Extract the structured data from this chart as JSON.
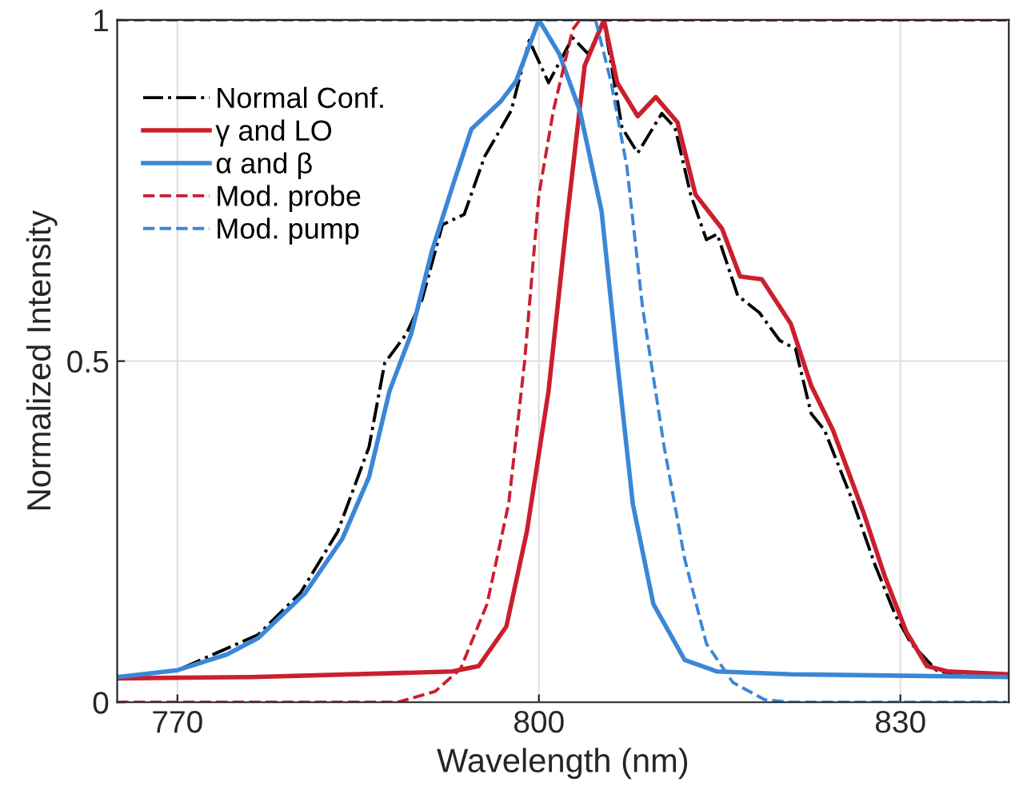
{
  "chart_data": {
    "type": "line",
    "xlabel": "Wavelength (nm)",
    "ylabel": "Normalized Intensity",
    "xlim": [
      765,
      839
    ],
    "ylim": [
      0,
      1.0
    ],
    "xticks": [
      770,
      800,
      830
    ],
    "yticks": [
      0,
      0.5,
      1
    ],
    "grid": true,
    "legend": "top left",
    "series": [
      {
        "name": "Normal Conf.",
        "color": "#000000",
        "line_style": "dashdot",
        "x": [
          765,
          770,
          776.7,
          780.2,
          783.3,
          785.9,
          787.2,
          789,
          790.3,
          792,
          793.8,
          795.5,
          797.7,
          799.2,
          800.8,
          802.8,
          804.1,
          805.4,
          806.9,
          808.2,
          810.2,
          811.3,
          812.6,
          813.9,
          814.8,
          816.5,
          818.3,
          820,
          821.3,
          822.6,
          823.7,
          826.1,
          827.9,
          829.6,
          830.9,
          833.1,
          838.8
        ],
        "values": [
          0.037,
          0.047,
          0.099,
          0.16,
          0.25,
          0.374,
          0.497,
          0.54,
          0.59,
          0.7,
          0.715,
          0.8,
          0.867,
          0.97,
          0.908,
          0.974,
          0.95,
          0.998,
          0.842,
          0.805,
          0.863,
          0.842,
          0.744,
          0.678,
          0.686,
          0.596,
          0.571,
          0.53,
          0.518,
          0.423,
          0.399,
          0.292,
          0.201,
          0.127,
          0.086,
          0.045,
          0.037
        ]
      },
      {
        "name": "γ and LO",
        "color": "#cb1f2d",
        "line_style": "solid",
        "x": [
          765,
          776.2,
          792.8,
          795,
          797.3,
          799,
          800.8,
          802.3,
          803.8,
          805.4,
          806.5,
          808.2,
          809.7,
          811.5,
          813,
          814.1,
          815.2,
          816.7,
          818.5,
          820.9,
          822.6,
          824.4,
          827,
          828.7,
          830.5,
          832.2,
          834,
          838.8
        ],
        "values": [
          0.035,
          0.037,
          0.045,
          0.053,
          0.111,
          0.25,
          0.456,
          0.703,
          0.933,
          1.0,
          0.908,
          0.859,
          0.887,
          0.85,
          0.744,
          0.719,
          0.694,
          0.624,
          0.62,
          0.555,
          0.464,
          0.399,
          0.275,
          0.185,
          0.103,
          0.053,
          0.045,
          0.041
        ]
      },
      {
        "name": "α and β",
        "color": "#3b87d6",
        "line_style": "solid",
        "x": [
          765,
          770,
          774.1,
          776.7,
          780.6,
          783.7,
          785.9,
          787.6,
          789.4,
          791.1,
          792.9,
          794.4,
          796.8,
          798.1,
          800,
          801.7,
          803.4,
          805.2,
          806.5,
          807.8,
          809.5,
          812.1,
          814.8,
          820.9,
          838.8
        ],
        "values": [
          0.037,
          0.047,
          0.07,
          0.094,
          0.16,
          0.24,
          0.33,
          0.456,
          0.54,
          0.66,
          0.76,
          0.84,
          0.88,
          0.91,
          1.0,
          0.95,
          0.867,
          0.72,
          0.5,
          0.29,
          0.144,
          0.062,
          0.045,
          0.041,
          0.037
        ]
      },
      {
        "name": "Mod. probe",
        "color": "#cb1f2d",
        "line_style": "dashed",
        "x": [
          765,
          788.3,
          791.4,
          793.5,
          795.7,
          797.5,
          798.8,
          800,
          801.2,
          802.8,
          803.4,
          838.8
        ],
        "values": [
          0,
          0,
          0.016,
          0.049,
          0.144,
          0.292,
          0.497,
          0.744,
          0.867,
          0.986,
          1.0,
          1.0
        ]
      },
      {
        "name": "Mod. pump",
        "color": "#3b87d6",
        "line_style": "dashed",
        "x": [
          765,
          804.7,
          806,
          807.3,
          808.6,
          810.4,
          812.1,
          813.9,
          816.1,
          818.7,
          820.9,
          838.8
        ],
        "values": [
          1.0,
          1.0,
          0.908,
          0.785,
          0.579,
          0.374,
          0.21,
          0.086,
          0.029,
          0.004,
          0,
          0
        ]
      }
    ]
  }
}
